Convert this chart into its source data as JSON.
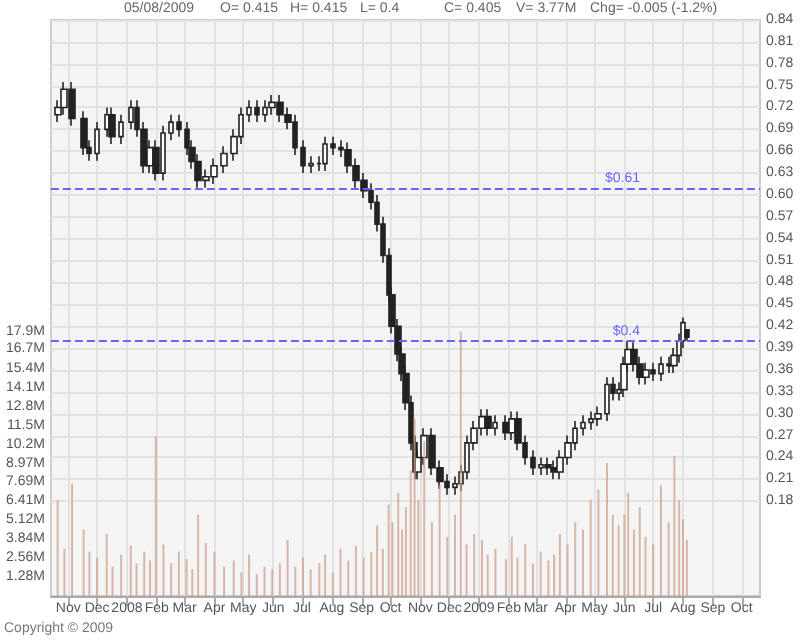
{
  "chart_data": {
    "type": "candlestick",
    "annotations": [
      "05/08/2009",
      "O= 0.415",
      "H= 0.415",
      "L= 0.4",
      "C= 0.405",
      "V= 3.77M",
      "Chg= -0.005 (-1.2%)",
      "Copyright © 2009"
    ],
    "xlim": [
      "2007-10-14",
      "2009-10-20"
    ],
    "xticks": [
      {
        "value": "2007-11-01",
        "label": "Nov"
      },
      {
        "value": "2007-12-01",
        "label": "Dec"
      },
      {
        "value": "2008-01-01",
        "label": "2008"
      },
      {
        "value": "2008-02-01",
        "label": "Feb"
      },
      {
        "value": "2008-03-01",
        "label": "Mar"
      },
      {
        "value": "2008-04-01",
        "label": "Apr"
      },
      {
        "value": "2008-05-01",
        "label": "May"
      },
      {
        "value": "2008-06-01",
        "label": "Jun"
      },
      {
        "value": "2008-07-01",
        "label": "Jul"
      },
      {
        "value": "2008-08-01",
        "label": "Aug"
      },
      {
        "value": "2008-09-01",
        "label": "Sep"
      },
      {
        "value": "2008-10-01",
        "label": "Oct"
      },
      {
        "value": "2008-11-01",
        "label": "Nov"
      },
      {
        "value": "2008-12-01",
        "label": "Dec"
      },
      {
        "value": "2009-01-01",
        "label": "2009"
      },
      {
        "value": "2009-02-01",
        "label": "Feb"
      },
      {
        "value": "2009-03-01",
        "label": "Mar"
      },
      {
        "value": "2009-04-01",
        "label": "Apr"
      },
      {
        "value": "2009-05-01",
        "label": "May"
      },
      {
        "value": "2009-06-01",
        "label": "Jun"
      },
      {
        "value": "2009-07-01",
        "label": "Jul"
      },
      {
        "value": "2009-08-01",
        "label": "Aug"
      },
      {
        "value": "2009-09-01",
        "label": "Sep"
      },
      {
        "value": "2009-10-01",
        "label": "Oct"
      }
    ],
    "ylim": [
      0,
      39
    ],
    "yticks": [
      {
        "value": 1.28,
        "label": "1.28M"
      },
      {
        "value": 2.56,
        "label": "2.56M"
      },
      {
        "value": 3.84,
        "label": "3.84M"
      },
      {
        "value": 5.12,
        "label": "5.12M"
      },
      {
        "value": 6.41,
        "label": "6.41M"
      },
      {
        "value": 7.69,
        "label": "7.69M"
      },
      {
        "value": 8.97,
        "label": "8.97M"
      },
      {
        "value": 10.2,
        "label": "10.2M"
      },
      {
        "value": 11.5,
        "label": "11.5M"
      },
      {
        "value": 12.8,
        "label": "12.8M"
      },
      {
        "value": 14.1,
        "label": "14.1M"
      },
      {
        "value": 15.4,
        "label": "15.4M"
      },
      {
        "value": 16.7,
        "label": "16.7M"
      },
      {
        "value": 17.9,
        "label": "17.9M"
      }
    ],
    "y2lim": [
      0.05,
      0.84
    ],
    "y2ticks": [
      0.18,
      0.21,
      0.24,
      0.27,
      {
        "value": 0.3,
        "label": "0.30"
      },
      0.33,
      0.36,
      0.39,
      0.42,
      0.45,
      0.48,
      0.51,
      0.54,
      0.57,
      {
        "value": 0.6,
        "label": "0.60"
      },
      0.63,
      0.66,
      0.69,
      0.72,
      0.75,
      0.78,
      0.81,
      0.84
    ],
    "grid": true,
    "ref_lines": [
      {
        "axis": "y2",
        "value": 0.61,
        "label": "$0.61",
        "color": "#6666ff",
        "line_style": "dashed"
      },
      {
        "axis": "y2",
        "value": 0.4,
        "label": "$0.4",
        "color": "#6666ff",
        "line_style": "dashed"
      }
    ],
    "series": [
      {
        "axis": "y2",
        "color": "#222222",
        "x": [
          "2007-10-21",
          "2007-10-28",
          "2007-11-05",
          "2007-11-17",
          "2007-11-23",
          "2007-12-01",
          "2007-12-11",
          "2007-12-17",
          "2007-12-26",
          "2008-01-05",
          "2008-01-11",
          "2008-01-19",
          "2008-01-25",
          "2008-01-31",
          "2008-02-08",
          "2008-02-16",
          "2008-02-24",
          "2008-03-03",
          "2008-03-09",
          "2008-03-15",
          "2008-03-23",
          "2008-04-01",
          "2008-04-11",
          "2008-04-21",
          "2008-04-29",
          "2008-05-07",
          "2008-05-15",
          "2008-05-23",
          "2008-05-31",
          "2008-06-08",
          "2008-06-16",
          "2008-06-24",
          "2008-07-02",
          "2008-07-10",
          "2008-07-19",
          "2008-07-25",
          "2008-08-02",
          "2008-08-10",
          "2008-08-18",
          "2008-08-26",
          "2008-09-03",
          "2008-09-11",
          "2008-09-17",
          "2008-09-23",
          "2008-09-29",
          "2008-10-03",
          "2008-10-09",
          "2008-10-13",
          "2008-10-17",
          "2008-10-22",
          "2008-10-26",
          "2008-10-30",
          "2008-11-05",
          "2008-11-13",
          "2008-11-21",
          "2008-11-29",
          "2008-12-07",
          "2008-12-13",
          "2008-12-19",
          "2008-12-27",
          "2009-01-04",
          "2009-01-10",
          "2009-01-18",
          "2009-01-29",
          "2009-02-04",
          "2009-02-10",
          "2009-02-18",
          "2009-02-26",
          "2009-03-06",
          "2009-03-14",
          "2009-03-20",
          "2009-03-26",
          "2009-04-03",
          "2009-04-11",
          "2009-04-19",
          "2009-04-27",
          "2009-05-05",
          "2009-05-14",
          "2009-05-20",
          "2009-05-26",
          "2009-06-01",
          "2009-06-05",
          "2009-06-11",
          "2009-06-17",
          "2009-06-23",
          "2009-07-01",
          "2009-07-09",
          "2009-07-17",
          "2009-07-23",
          "2009-07-28",
          "2009-08-01",
          "2009-08-05"
        ],
        "ohlc": [
          [
            0.71,
            0.73,
            0.7,
            0.72
          ],
          [
            0.72,
            0.755,
            0.71,
            0.745
          ],
          [
            0.745,
            0.755,
            0.695,
            0.705
          ],
          [
            0.705,
            0.715,
            0.655,
            0.665
          ],
          [
            0.665,
            0.675,
            0.647,
            0.657
          ],
          [
            0.657,
            0.7,
            0.647,
            0.69
          ],
          [
            0.69,
            0.72,
            0.68,
            0.71
          ],
          [
            0.71,
            0.72,
            0.67,
            0.68
          ],
          [
            0.68,
            0.71,
            0.67,
            0.7
          ],
          [
            0.7,
            0.73,
            0.69,
            0.72
          ],
          [
            0.72,
            0.73,
            0.68,
            0.69
          ],
          [
            0.69,
            0.7,
            0.63,
            0.64
          ],
          [
            0.64,
            0.675,
            0.63,
            0.665
          ],
          [
            0.665,
            0.675,
            0.62,
            0.63
          ],
          [
            0.63,
            0.695,
            0.62,
            0.685
          ],
          [
            0.685,
            0.71,
            0.675,
            0.7
          ],
          [
            0.7,
            0.71,
            0.68,
            0.69
          ],
          [
            0.69,
            0.7,
            0.655,
            0.665
          ],
          [
            0.665,
            0.675,
            0.636,
            0.646
          ],
          [
            0.646,
            0.656,
            0.61,
            0.62
          ],
          [
            0.62,
            0.635,
            0.61,
            0.625
          ],
          [
            0.625,
            0.65,
            0.615,
            0.64
          ],
          [
            0.64,
            0.667,
            0.63,
            0.657
          ],
          [
            0.657,
            0.69,
            0.647,
            0.68
          ],
          [
            0.68,
            0.72,
            0.67,
            0.71
          ],
          [
            0.71,
            0.73,
            0.7,
            0.72
          ],
          [
            0.72,
            0.73,
            0.7,
            0.71
          ],
          [
            0.71,
            0.73,
            0.7,
            0.72
          ],
          [
            0.72,
            0.737,
            0.71,
            0.727
          ],
          [
            0.727,
            0.737,
            0.7,
            0.71
          ],
          [
            0.71,
            0.72,
            0.69,
            0.7
          ],
          [
            0.7,
            0.71,
            0.655,
            0.665
          ],
          [
            0.665,
            0.675,
            0.63,
            0.64
          ],
          [
            0.64,
            0.653,
            0.63,
            0.643
          ],
          [
            0.643,
            0.653,
            0.633,
            0.643
          ],
          [
            0.643,
            0.68,
            0.633,
            0.67
          ],
          [
            0.67,
            0.68,
            0.655,
            0.665
          ],
          [
            0.665,
            0.675,
            0.652,
            0.662
          ],
          [
            0.662,
            0.672,
            0.63,
            0.64
          ],
          [
            0.64,
            0.65,
            0.61,
            0.62
          ],
          [
            0.62,
            0.63,
            0.596,
            0.606
          ],
          [
            0.606,
            0.616,
            0.58,
            0.59
          ],
          [
            0.59,
            0.6,
            0.55,
            0.56
          ],
          [
            0.56,
            0.57,
            0.507,
            0.517
          ],
          [
            0.517,
            0.527,
            0.453,
            0.463
          ],
          [
            0.463,
            0.473,
            0.41,
            0.42
          ],
          [
            0.42,
            0.43,
            0.372,
            0.382
          ],
          [
            0.382,
            0.392,
            0.345,
            0.355
          ],
          [
            0.355,
            0.365,
            0.305,
            0.315
          ],
          [
            0.315,
            0.325,
            0.25,
            0.26
          ],
          [
            0.26,
            0.27,
            0.21,
            0.22
          ],
          [
            0.22,
            0.25,
            0.21,
            0.24
          ],
          [
            0.24,
            0.28,
            0.23,
            0.27
          ],
          [
            0.27,
            0.28,
            0.216,
            0.226
          ],
          [
            0.226,
            0.236,
            0.197,
            0.207
          ],
          [
            0.207,
            0.217,
            0.189,
            0.199
          ],
          [
            0.199,
            0.214,
            0.189,
            0.204
          ],
          [
            0.204,
            0.23,
            0.194,
            0.22
          ],
          [
            0.22,
            0.27,
            0.21,
            0.26
          ],
          [
            0.26,
            0.29,
            0.25,
            0.28
          ],
          [
            0.28,
            0.306,
            0.27,
            0.296
          ],
          [
            0.296,
            0.306,
            0.27,
            0.28
          ],
          [
            0.28,
            0.298,
            0.27,
            0.288
          ],
          [
            0.288,
            0.298,
            0.264,
            0.274
          ],
          [
            0.274,
            0.303,
            0.264,
            0.293
          ],
          [
            0.293,
            0.303,
            0.25,
            0.26
          ],
          [
            0.26,
            0.27,
            0.23,
            0.24
          ],
          [
            0.24,
            0.25,
            0.216,
            0.226
          ],
          [
            0.226,
            0.24,
            0.216,
            0.23
          ],
          [
            0.23,
            0.24,
            0.216,
            0.226
          ],
          [
            0.226,
            0.236,
            0.21,
            0.22
          ],
          [
            0.22,
            0.25,
            0.21,
            0.24
          ],
          [
            0.24,
            0.27,
            0.23,
            0.26
          ],
          [
            0.26,
            0.29,
            0.25,
            0.28
          ],
          [
            0.28,
            0.298,
            0.27,
            0.288
          ],
          [
            0.288,
            0.303,
            0.278,
            0.293
          ],
          [
            0.293,
            0.31,
            0.283,
            0.3
          ],
          [
            0.3,
            0.35,
            0.29,
            0.34
          ],
          [
            0.34,
            0.35,
            0.318,
            0.328
          ],
          [
            0.328,
            0.343,
            0.318,
            0.333
          ],
          [
            0.333,
            0.378,
            0.323,
            0.368
          ],
          [
            0.368,
            0.4,
            0.358,
            0.388
          ],
          [
            0.388,
            0.398,
            0.358,
            0.368
          ],
          [
            0.368,
            0.378,
            0.34,
            0.35
          ],
          [
            0.35,
            0.37,
            0.34,
            0.36
          ],
          [
            0.36,
            0.37,
            0.345,
            0.355
          ],
          [
            0.355,
            0.378,
            0.345,
            0.368
          ],
          [
            0.368,
            0.378,
            0.356,
            0.366
          ],
          [
            0.366,
            0.39,
            0.356,
            0.38
          ],
          [
            0.38,
            0.41,
            0.37,
            0.4
          ],
          [
            0.4,
            0.432,
            0.39,
            0.425
          ],
          [
            0.415,
            0.415,
            0.4,
            0.405
          ]
        ]
      },
      {
        "type": "bar",
        "axis": "y",
        "color": "#cfa08c",
        "x": [
          "2007-10-21",
          "2007-10-28",
          "2007-11-05",
          "2007-11-17",
          "2007-11-23",
          "2007-12-01",
          "2007-12-11",
          "2007-12-17",
          "2007-12-26",
          "2008-01-05",
          "2008-01-11",
          "2008-01-19",
          "2008-01-25",
          "2008-01-31",
          "2008-02-08",
          "2008-02-16",
          "2008-02-24",
          "2008-03-03",
          "2008-03-09",
          "2008-03-15",
          "2008-03-23",
          "2008-04-01",
          "2008-04-11",
          "2008-04-21",
          "2008-04-29",
          "2008-05-07",
          "2008-05-15",
          "2008-05-23",
          "2008-05-31",
          "2008-06-08",
          "2008-06-16",
          "2008-06-24",
          "2008-07-02",
          "2008-07-10",
          "2008-07-19",
          "2008-07-25",
          "2008-08-02",
          "2008-08-10",
          "2008-08-18",
          "2008-08-26",
          "2008-09-03",
          "2008-09-11",
          "2008-09-17",
          "2008-09-23",
          "2008-09-29",
          "2008-10-03",
          "2008-10-09",
          "2008-10-13",
          "2008-10-17",
          "2008-10-22",
          "2008-10-26",
          "2008-10-30",
          "2008-11-05",
          "2008-11-13",
          "2008-11-21",
          "2008-11-29",
          "2008-12-07",
          "2008-12-13",
          "2008-12-19",
          "2008-12-27",
          "2009-01-04",
          "2009-01-10",
          "2009-01-18",
          "2009-01-29",
          "2009-02-04",
          "2009-02-10",
          "2009-02-18",
          "2009-02-26",
          "2009-03-06",
          "2009-03-14",
          "2009-03-20",
          "2009-03-26",
          "2009-04-03",
          "2009-04-11",
          "2009-04-19",
          "2009-04-27",
          "2009-05-05",
          "2009-05-14",
          "2009-05-20",
          "2009-05-26",
          "2009-06-01",
          "2009-06-05",
          "2009-06-11",
          "2009-06-17",
          "2009-06-23",
          "2009-07-01",
          "2009-07-09",
          "2009-07-17",
          "2009-07-23",
          "2009-07-28",
          "2009-08-01",
          "2009-08-05"
        ],
        "values": [
          6.5,
          3.2,
          7.6,
          4.5,
          3.0,
          2.6,
          4.2,
          2.0,
          2.8,
          3.4,
          2.2,
          3.0,
          2.4,
          10.8,
          3.5,
          2.2,
          3.0,
          2.5,
          1.8,
          5.5,
          3.6,
          3.0,
          2.0,
          2.4,
          1.6,
          2.8,
          1.5,
          2.0,
          1.8,
          2.2,
          3.8,
          2.0,
          2.6,
          1.8,
          2.2,
          2.8,
          1.6,
          3.2,
          2.4,
          3.4,
          2.6,
          3.0,
          4.8,
          3.2,
          6.2,
          5.0,
          7.0,
          4.5,
          6.0,
          8.5,
          12.0,
          6.5,
          10.5,
          5.0,
          7.5,
          4.0,
          5.5,
          17.9,
          3.5,
          4.2,
          3.8,
          2.8,
          3.2,
          2.5,
          4.0,
          2.6,
          3.5,
          2.2,
          3.0,
          2.4,
          2.8,
          4.2,
          3.5,
          5.0,
          4.5,
          6.5,
          7.2,
          9.0,
          5.5,
          4.8,
          5.5,
          7.0,
          4.5,
          6.0,
          4.0,
          3.5,
          7.5,
          5.0,
          9.5,
          6.5,
          5.2,
          3.8
        ]
      }
    ]
  }
}
